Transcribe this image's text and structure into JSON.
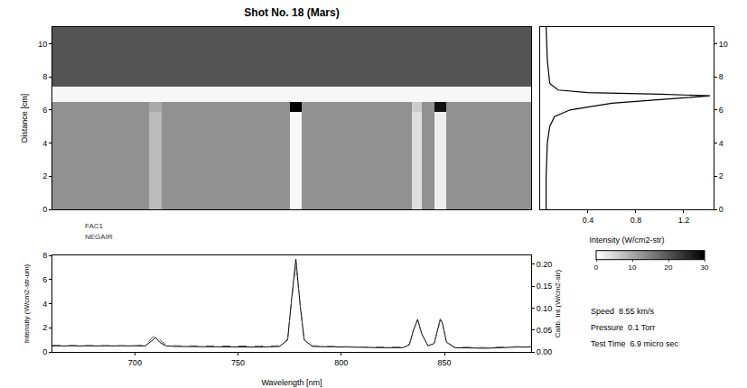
{
  "chart_data": [
    {
      "type": "heatmap",
      "title": "Shot No. 18 (Mars)",
      "y_label": "Distance [cm]",
      "x_edges": [
        660,
        707,
        713,
        775,
        781,
        834,
        839,
        845,
        851,
        892
      ],
      "y_edges": [
        0,
        5.9,
        6.5,
        7.4,
        11
      ],
      "cells": [
        [
          13,
          8,
          13,
          1,
          13,
          4,
          13,
          2,
          13
        ],
        [
          13,
          10,
          13,
          30,
          13,
          6,
          13,
          28,
          13
        ],
        [
          1,
          1,
          1,
          1,
          1,
          1,
          1,
          1,
          1
        ],
        [
          20,
          20,
          20,
          20,
          20,
          20,
          20,
          20,
          20
        ]
      ],
      "xlim": [
        660,
        892
      ],
      "ylim": [
        0,
        11
      ],
      "yticks": [
        0,
        2,
        4,
        6,
        8,
        10
      ],
      "zlim": [
        0,
        30
      ],
      "zticks": [
        0,
        10,
        20,
        30
      ],
      "tick_labels": "y"
    },
    {
      "type": "line",
      "x_label": "Intensity (W/cm2-str)",
      "x": [
        0.05,
        0.05,
        0.06,
        0.08,
        0.12,
        0.25,
        0.6,
        1.2,
        1.42,
        1.0,
        0.4,
        0.15,
        0.08,
        0.06,
        0.05
      ],
      "y": [
        0,
        2,
        4,
        5,
        5.6,
        6.0,
        6.4,
        6.7,
        6.85,
        6.95,
        7.05,
        7.2,
        7.6,
        9,
        11
      ],
      "color": "#000000",
      "xlim": [
        0,
        1.45
      ],
      "xticks": [
        0.4,
        0.8,
        1.2
      ],
      "ylim": [
        0,
        11
      ],
      "yticks": [
        0,
        2,
        4,
        6,
        8,
        10
      ]
    },
    {
      "type": "line",
      "x_label": "Wavelength [nm]",
      "y_label": "Intensity (W/cm2-str-um)",
      "y2_label": "Calib. Int (W/cm2-str)",
      "x": [
        660,
        680,
        700,
        705,
        708,
        710,
        712,
        715,
        720,
        740,
        760,
        770,
        774,
        776,
        778,
        780,
        782,
        786,
        800,
        820,
        830,
        833,
        835,
        837,
        839,
        842,
        845,
        847,
        848,
        849,
        851,
        855,
        870,
        885,
        892
      ],
      "series": [
        {
          "color": "#000000",
          "line_style": "solid",
          "values": [
            0.5,
            0.5,
            0.45,
            0.5,
            0.9,
            1.2,
            0.8,
            0.5,
            0.45,
            0.4,
            0.4,
            0.45,
            1.0,
            4.5,
            7.7,
            4.0,
            1.0,
            0.45,
            0.4,
            0.35,
            0.35,
            0.6,
            1.8,
            2.7,
            1.5,
            0.5,
            0.7,
            2.0,
            2.7,
            2.4,
            0.8,
            0.35,
            0.3,
            0.4,
            0.4
          ]
        },
        {
          "color": "#555555",
          "line_style": "dash",
          "axis": "y2",
          "values": [
            0.015,
            0.015,
            0.014,
            0.016,
            0.03,
            0.04,
            0.028,
            0.016,
            0.014,
            0.013,
            0.013,
            0.014,
            0.03,
            0.12,
            0.2,
            0.11,
            0.03,
            0.014,
            0.012,
            0.011,
            0.011,
            0.018,
            0.05,
            0.075,
            0.04,
            0.015,
            0.02,
            0.055,
            0.075,
            0.065,
            0.022,
            0.011,
            0.01,
            0.012,
            0.012
          ]
        }
      ],
      "xlim": [
        660,
        892
      ],
      "xticks": [
        700,
        750,
        800,
        850
      ],
      "ylim": [
        0,
        8
      ],
      "yticks": [
        0,
        2,
        4,
        6,
        8
      ],
      "y2lim": [
        0,
        0.22
      ],
      "y2ticks": [
        {
          "value": 0,
          "label": "0.00"
        },
        0.05,
        {
          "value": 0.1,
          "label": "0.10"
        },
        0.15,
        {
          "value": 0.2,
          "label": "0.20"
        }
      ],
      "annotations": [
        "FAC1",
        "NEGAIR",
        "Speed  8.55 km/s",
        "Pressure  0.1 Torr",
        "Test Time  6.9 micro sec"
      ]
    }
  ]
}
